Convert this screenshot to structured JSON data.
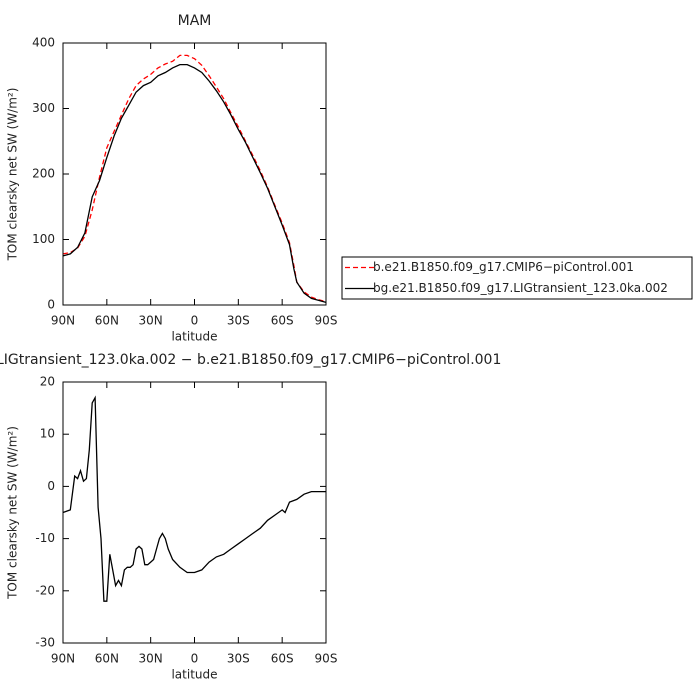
{
  "chart_data": [
    {
      "type": "line",
      "title": "MAM",
      "xlabel": "latitude",
      "ylabel": "TOM clearsky net SW (W/m²)",
      "xlim": [
        90,
        -90
      ],
      "ylim": [
        0,
        400
      ],
      "xticks": [
        {
          "value": 90,
          "label": "90N"
        },
        {
          "value": 60,
          "label": "60N"
        },
        {
          "value": 30,
          "label": "30N"
        },
        0,
        {
          "value": -30,
          "label": "30S"
        },
        {
          "value": -60,
          "label": "60S"
        },
        {
          "value": -90,
          "label": "90S"
        }
      ],
      "yticks": [
        0,
        100,
        200,
        300,
        400
      ],
      "legend": "right",
      "x": [
        90,
        85,
        80,
        75,
        70,
        65,
        60,
        55,
        50,
        45,
        40,
        35,
        30,
        25,
        20,
        15,
        10,
        5,
        0,
        -5,
        -10,
        -15,
        -20,
        -25,
        -30,
        -35,
        -40,
        -45,
        -50,
        -55,
        -60,
        -65,
        -68,
        -70,
        -75,
        -80,
        -85,
        -90
      ],
      "series": [
        {
          "name": "b.e21.B1850.f09_g17.CMIP6−piControl.001",
          "color": "#ff0000",
          "linestyle": "dashed",
          "values": [
            78,
            80,
            87,
            105,
            145,
            195,
            240,
            265,
            290,
            315,
            335,
            345,
            352,
            362,
            368,
            372,
            381,
            381,
            376,
            366,
            350,
            333,
            315,
            293,
            272,
            250,
            228,
            205,
            180,
            152,
            125,
            95,
            60,
            35,
            20,
            12,
            8,
            5
          ]
        },
        {
          "name": "bg.e21.B1850.f09_g17.LIGtransient_123.0ka.002",
          "color": "#000000",
          "linestyle": "solid",
          "values": [
            75,
            78,
            88,
            110,
            165,
            190,
            225,
            258,
            285,
            305,
            325,
            335,
            340,
            350,
            355,
            362,
            367,
            367,
            362,
            355,
            342,
            327,
            310,
            290,
            268,
            248,
            225,
            202,
            178,
            150,
            122,
            92,
            55,
            35,
            18,
            10,
            7,
            4
          ]
        }
      ]
    },
    {
      "type": "line",
      "title": "LIGtransient_123.0ka.002 − b.e21.B1850.f09_g17.CMIP6−piControl.001",
      "xlabel": "latitude",
      "ylabel": "TOM clearsky net SW (W/m²)",
      "xlim": [
        90,
        -90
      ],
      "ylim": [
        -30,
        20
      ],
      "xticks": [
        {
          "value": 90,
          "label": "90N"
        },
        {
          "value": 60,
          "label": "60N"
        },
        {
          "value": 30,
          "label": "30N"
        },
        0,
        {
          "value": -30,
          "label": "30S"
        },
        {
          "value": -60,
          "label": "60S"
        },
        {
          "value": -90,
          "label": "90S"
        }
      ],
      "yticks": [
        -30,
        -20,
        -10,
        0,
        10,
        20
      ],
      "x": [
        90,
        85,
        82,
        80,
        78,
        76,
        74,
        72,
        70,
        68,
        66,
        64,
        62,
        60,
        58,
        56,
        54,
        52,
        50,
        48,
        46,
        44,
        42,
        40,
        38,
        36,
        34,
        32,
        30,
        28,
        26,
        24,
        22,
        20,
        18,
        15,
        10,
        5,
        0,
        -5,
        -10,
        -15,
        -20,
        -25,
        -30,
        -35,
        -40,
        -45,
        -50,
        -55,
        -60,
        -62,
        -65,
        -70,
        -75,
        -80,
        -85,
        -90
      ],
      "series": [
        {
          "color": "#000000",
          "linestyle": "solid",
          "values": [
            -5,
            -4.5,
            2,
            1.5,
            3,
            1,
            1.5,
            7,
            16,
            17,
            -4,
            -10,
            -22,
            -22,
            -13,
            -16,
            -19,
            -18,
            -19,
            -16,
            -15.5,
            -15.5,
            -15,
            -12,
            -11.5,
            -12,
            -15,
            -15,
            -14.5,
            -14,
            -12,
            -10,
            -9,
            -10,
            -12,
            -14,
            -15.5,
            -16.5,
            -16.5,
            -16,
            -14.5,
            -13.5,
            -13,
            -12,
            -11,
            -10,
            -9,
            -8,
            -6.5,
            -5.5,
            -4.5,
            -5,
            -3,
            -2.5,
            -1.5,
            -1,
            -1,
            -1
          ]
        }
      ]
    }
  ]
}
